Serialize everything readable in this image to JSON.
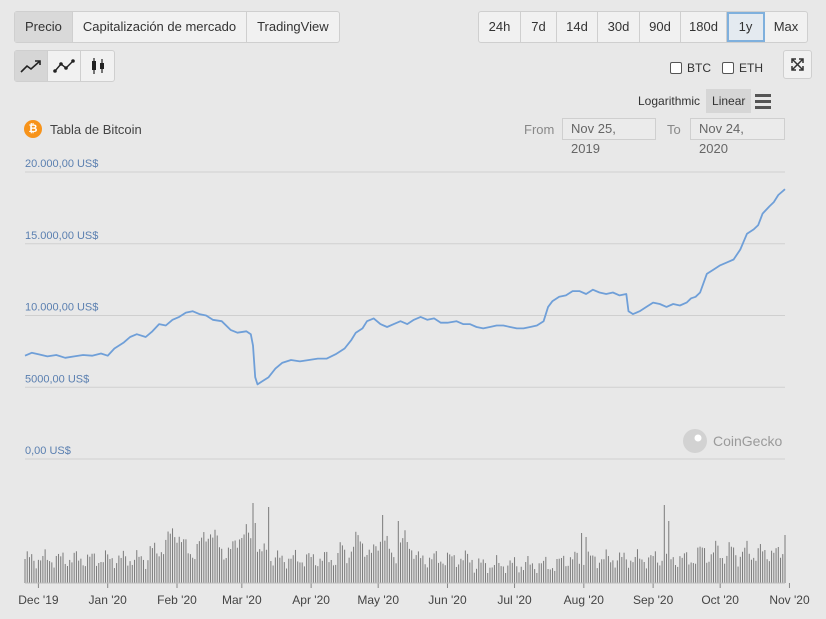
{
  "tabs": [
    {
      "label": "Precio",
      "active": true
    },
    {
      "label": "Capitalización de mercado",
      "active": false
    },
    {
      "label": "TradingView",
      "active": false
    }
  ],
  "ranges": [
    {
      "label": "24h",
      "selected": false
    },
    {
      "label": "7d",
      "selected": false
    },
    {
      "label": "14d",
      "selected": false
    },
    {
      "label": "30d",
      "selected": false
    },
    {
      "label": "90d",
      "selected": false
    },
    {
      "label": "180d",
      "selected": false
    },
    {
      "label": "1y",
      "selected": true
    },
    {
      "label": "Max",
      "selected": false
    }
  ],
  "chart_types": [
    {
      "icon": "line-chart-icon",
      "active": true
    },
    {
      "icon": "line-markers-chart-icon",
      "active": false
    },
    {
      "icon": "candlestick-chart-icon",
      "active": false
    }
  ],
  "compare": {
    "btc_label": "BTC",
    "eth_label": "ETH"
  },
  "scale": {
    "log_label": "Logarithmic",
    "linear_label": "Linear",
    "active": "Linear"
  },
  "chart_title": "Tabla de Bitcoin",
  "date_range": {
    "from_label": "From",
    "from_value": "Nov 25, 2019",
    "to_label": "To",
    "to_value": "Nov 24, 2020"
  },
  "watermark": "CoinGecko",
  "colors": {
    "line": "#6f9fd8",
    "volume": "#7a7a7a",
    "accent": "#f7931a"
  },
  "chart_data": {
    "type": "line",
    "title": "Tabla de Bitcoin",
    "ylim": [
      0,
      20000
    ],
    "y_ticks": [
      {
        "value": 20000,
        "label": "20.000,00 US$"
      },
      {
        "value": 15000,
        "label": "15.000,00 US$"
      },
      {
        "value": 10000,
        "label": "10.000,00 US$"
      },
      {
        "value": 5000,
        "label": "5000,00 US$"
      },
      {
        "value": 0,
        "label": "0,00 US$"
      }
    ],
    "x_ticks": [
      "Dec '19",
      "Jan '20",
      "Feb '20",
      "Mar '20",
      "Apr '20",
      "May '20",
      "Jun '20",
      "Jul '20",
      "Aug '20",
      "Sep '20",
      "Oct '20",
      "Nov '20"
    ],
    "x_tick_days": [
      6,
      37,
      68,
      97,
      128,
      158,
      189,
      219,
      250,
      281,
      311,
      342
    ],
    "price_series": [
      [
        0,
        7200
      ],
      [
        3,
        7400
      ],
      [
        6,
        7300
      ],
      [
        10,
        7150
      ],
      [
        14,
        7250
      ],
      [
        18,
        7050
      ],
      [
        22,
        7150
      ],
      [
        26,
        7250
      ],
      [
        30,
        7200
      ],
      [
        34,
        7350
      ],
      [
        37,
        7200
      ],
      [
        40,
        7700
      ],
      [
        44,
        8100
      ],
      [
        47,
        8500
      ],
      [
        50,
        8700
      ],
      [
        54,
        8500
      ],
      [
        57,
        8900
      ],
      [
        60,
        9400
      ],
      [
        63,
        9300
      ],
      [
        66,
        9700
      ],
      [
        69,
        9900
      ],
      [
        72,
        10200
      ],
      [
        75,
        10300
      ],
      [
        78,
        10100
      ],
      [
        81,
        10000
      ],
      [
        84,
        9700
      ],
      [
        88,
        9600
      ],
      [
        92,
        9000
      ],
      [
        95,
        8800
      ],
      [
        99,
        8900
      ],
      [
        101,
        8700
      ],
      [
        102,
        7900
      ],
      [
        103,
        5700
      ],
      [
        104,
        5200
      ],
      [
        106,
        5400
      ],
      [
        109,
        5700
      ],
      [
        112,
        6300
      ],
      [
        115,
        6700
      ],
      [
        119,
        6900
      ],
      [
        123,
        6800
      ],
      [
        127,
        6900
      ],
      [
        131,
        7000
      ],
      [
        135,
        7000
      ],
      [
        139,
        7300
      ],
      [
        143,
        7700
      ],
      [
        146,
        8300
      ],
      [
        148,
        8800
      ],
      [
        151,
        9100
      ],
      [
        153,
        9600
      ],
      [
        156,
        9800
      ],
      [
        159,
        9400
      ],
      [
        162,
        9200
      ],
      [
        165,
        9400
      ],
      [
        168,
        9600
      ],
      [
        171,
        9400
      ],
      [
        174,
        9700
      ],
      [
        177,
        9900
      ],
      [
        180,
        9700
      ],
      [
        183,
        9800
      ],
      [
        186,
        9500
      ],
      [
        189,
        9500
      ],
      [
        193,
        9600
      ],
      [
        196,
        9400
      ],
      [
        199,
        9400
      ],
      [
        202,
        9200
      ],
      [
        205,
        9100
      ],
      [
        208,
        9200
      ],
      [
        211,
        9300
      ],
      [
        214,
        9300
      ],
      [
        217,
        9200
      ],
      [
        220,
        9100
      ],
      [
        223,
        9100
      ],
      [
        226,
        9200
      ],
      [
        229,
        9300
      ],
      [
        232,
        9600
      ],
      [
        234,
        10600
      ],
      [
        236,
        11000
      ],
      [
        239,
        11300
      ],
      [
        242,
        11400
      ],
      [
        245,
        11700
      ],
      [
        248,
        11700
      ],
      [
        251,
        11500
      ],
      [
        254,
        11800
      ],
      [
        257,
        11600
      ],
      [
        260,
        11500
      ],
      [
        263,
        11600
      ],
      [
        266,
        11400
      ],
      [
        269,
        11500
      ],
      [
        270,
        10300
      ],
      [
        272,
        10100
      ],
      [
        275,
        10300
      ],
      [
        278,
        10600
      ],
      [
        281,
        10900
      ],
      [
        284,
        10800
      ],
      [
        287,
        10600
      ],
      [
        290,
        10800
      ],
      [
        293,
        10700
      ],
      [
        296,
        10900
      ],
      [
        298,
        11200
      ],
      [
        300,
        11300
      ],
      [
        302,
        11600
      ],
      [
        305,
        12900
      ],
      [
        308,
        13200
      ],
      [
        311,
        13500
      ],
      [
        314,
        13700
      ],
      [
        317,
        13900
      ],
      [
        320,
        14600
      ],
      [
        323,
        15700
      ],
      [
        326,
        16000
      ],
      [
        328,
        16300
      ],
      [
        330,
        17100
      ],
      [
        333,
        17600
      ],
      [
        335,
        17900
      ],
      [
        337,
        18400
      ],
      [
        340,
        18800
      ]
    ]
  }
}
